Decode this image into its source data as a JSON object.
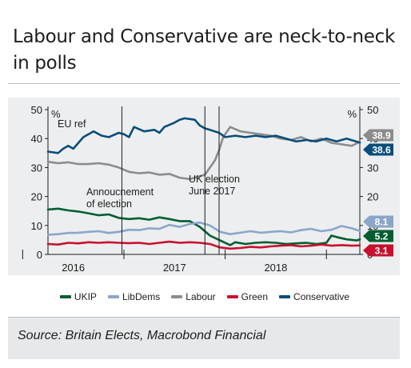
{
  "title": "Labour and Conservative are neck-to-neck in polls",
  "source": "Source: Britain Elects, Macrobond Financial",
  "chart_data": {
    "type": "line",
    "y_left_unit": "%",
    "y_right_unit": "%",
    "ylim": [
      0,
      50
    ],
    "yticks": [
      "0",
      "10",
      "20",
      "30",
      "40",
      "50"
    ],
    "xlim": [
      2015.75,
      2018.83
    ],
    "xticks": [
      {
        "value": 2016.0,
        "label": "2016"
      },
      {
        "value": 2017.0,
        "label": "2017"
      },
      {
        "value": 2018.0,
        "label": "2018"
      }
    ],
    "year_separators": [
      2016.0,
      2017.0,
      2018.0
    ],
    "vlines": [
      {
        "x": 2016.48,
        "label": "EU ref"
      },
      {
        "x": 2017.3,
        "label": "Annoucnement\nof election"
      },
      {
        "x": 2017.44,
        "label": "UK election\nJune 2017"
      }
    ],
    "grid": false,
    "legend_position": "bottom",
    "series": [
      {
        "name": "UKIP",
        "color": "#005e31",
        "end_value": "5.2",
        "points": [
          [
            2015.75,
            15.5
          ],
          [
            2015.85,
            15.8
          ],
          [
            2015.95,
            15.2
          ],
          [
            2016.05,
            14.8
          ],
          [
            2016.15,
            14.2
          ],
          [
            2016.25,
            13.5
          ],
          [
            2016.35,
            13.8
          ],
          [
            2016.45,
            12.6
          ],
          [
            2016.55,
            12.2
          ],
          [
            2016.65,
            12.5
          ],
          [
            2016.75,
            12.0
          ],
          [
            2016.85,
            12.8
          ],
          [
            2016.95,
            12.2
          ],
          [
            2017.05,
            11.5
          ],
          [
            2017.15,
            11.5
          ],
          [
            2017.25,
            9.5
          ],
          [
            2017.35,
            6.5
          ],
          [
            2017.45,
            4.8
          ],
          [
            2017.55,
            3.2
          ],
          [
            2017.6,
            4.2
          ],
          [
            2017.7,
            3.6
          ],
          [
            2017.8,
            4.0
          ],
          [
            2017.9,
            4.2
          ],
          [
            2018.0,
            4.0
          ],
          [
            2018.1,
            3.6
          ],
          [
            2018.2,
            3.8
          ],
          [
            2018.3,
            4.0
          ],
          [
            2018.4,
            3.6
          ],
          [
            2018.5,
            4.0
          ],
          [
            2018.55,
            6.5
          ],
          [
            2018.6,
            6.0
          ],
          [
            2018.7,
            5.2
          ],
          [
            2018.8,
            4.8
          ],
          [
            2018.83,
            5.2
          ]
        ]
      },
      {
        "name": "LibDems",
        "color": "#8ba6c8",
        "end_value": "8.1",
        "points": [
          [
            2015.75,
            6.8
          ],
          [
            2015.85,
            7.0
          ],
          [
            2015.95,
            7.4
          ],
          [
            2016.05,
            7.5
          ],
          [
            2016.15,
            7.8
          ],
          [
            2016.25,
            8.0
          ],
          [
            2016.35,
            7.4
          ],
          [
            2016.45,
            7.8
          ],
          [
            2016.55,
            8.5
          ],
          [
            2016.65,
            8.4
          ],
          [
            2016.75,
            9.0
          ],
          [
            2016.85,
            8.8
          ],
          [
            2016.95,
            10.2
          ],
          [
            2017.05,
            9.5
          ],
          [
            2017.15,
            10.5
          ],
          [
            2017.25,
            11.0
          ],
          [
            2017.35,
            10.0
          ],
          [
            2017.45,
            7.8
          ],
          [
            2017.55,
            7.0
          ],
          [
            2017.65,
            7.5
          ],
          [
            2017.75,
            8.0
          ],
          [
            2017.85,
            7.5
          ],
          [
            2017.95,
            7.8
          ],
          [
            2018.05,
            8.0
          ],
          [
            2018.15,
            7.6
          ],
          [
            2018.25,
            8.4
          ],
          [
            2018.35,
            8.8
          ],
          [
            2018.45,
            8.0
          ],
          [
            2018.55,
            8.5
          ],
          [
            2018.65,
            9.8
          ],
          [
            2018.75,
            9.0
          ],
          [
            2018.83,
            8.1
          ]
        ]
      },
      {
        "name": "Labour",
        "color": "#8c8c8c",
        "end_value": "38.9",
        "points": [
          [
            2015.75,
            32.0
          ],
          [
            2015.85,
            31.5
          ],
          [
            2015.95,
            31.8
          ],
          [
            2016.05,
            31.2
          ],
          [
            2016.15,
            31.2
          ],
          [
            2016.25,
            31.5
          ],
          [
            2016.35,
            31.0
          ],
          [
            2016.45,
            30.0
          ],
          [
            2016.55,
            28.5
          ],
          [
            2016.65,
            28.0
          ],
          [
            2016.75,
            28.3
          ],
          [
            2016.85,
            27.5
          ],
          [
            2016.95,
            27.8
          ],
          [
            2017.05,
            26.5
          ],
          [
            2017.15,
            26.0
          ],
          [
            2017.25,
            27.0
          ],
          [
            2017.3,
            27.5
          ],
          [
            2017.35,
            30.0
          ],
          [
            2017.4,
            32.5
          ],
          [
            2017.44,
            36.0
          ],
          [
            2017.48,
            40.5
          ],
          [
            2017.55,
            44.0
          ],
          [
            2017.65,
            42.5
          ],
          [
            2017.75,
            42.0
          ],
          [
            2017.85,
            41.5
          ],
          [
            2017.95,
            41.0
          ],
          [
            2018.05,
            40.0
          ],
          [
            2018.15,
            39.5
          ],
          [
            2018.25,
            40.5
          ],
          [
            2018.35,
            39.0
          ],
          [
            2018.45,
            40.0
          ],
          [
            2018.55,
            38.5
          ],
          [
            2018.65,
            38.0
          ],
          [
            2018.75,
            37.5
          ],
          [
            2018.83,
            38.9
          ]
        ]
      },
      {
        "name": "Green",
        "color": "#c8102e",
        "end_value": "3.1",
        "points": [
          [
            2015.75,
            3.6
          ],
          [
            2015.85,
            3.4
          ],
          [
            2015.95,
            4.0
          ],
          [
            2016.05,
            3.8
          ],
          [
            2016.15,
            4.2
          ],
          [
            2016.25,
            4.0
          ],
          [
            2016.35,
            4.2
          ],
          [
            2016.45,
            4.0
          ],
          [
            2016.55,
            3.9
          ],
          [
            2016.65,
            4.0
          ],
          [
            2016.75,
            3.6
          ],
          [
            2016.85,
            4.0
          ],
          [
            2016.95,
            4.4
          ],
          [
            2017.05,
            4.0
          ],
          [
            2017.15,
            4.2
          ],
          [
            2017.25,
            4.0
          ],
          [
            2017.35,
            3.6
          ],
          [
            2017.45,
            2.4
          ],
          [
            2017.55,
            2.0
          ],
          [
            2017.65,
            2.2
          ],
          [
            2017.75,
            2.6
          ],
          [
            2017.85,
            2.4
          ],
          [
            2017.95,
            2.8
          ],
          [
            2018.05,
            3.0
          ],
          [
            2018.15,
            3.2
          ],
          [
            2018.25,
            2.8
          ],
          [
            2018.35,
            3.0
          ],
          [
            2018.45,
            3.4
          ],
          [
            2018.55,
            3.0
          ],
          [
            2018.65,
            3.2
          ],
          [
            2018.75,
            3.0
          ],
          [
            2018.83,
            3.1
          ]
        ]
      },
      {
        "name": "Conservative",
        "color": "#0a4d7a",
        "end_value": "38.6",
        "points": [
          [
            2015.75,
            35.5
          ],
          [
            2015.85,
            35.0
          ],
          [
            2015.9,
            36.5
          ],
          [
            2015.95,
            37.5
          ],
          [
            2016.0,
            36.5
          ],
          [
            2016.1,
            40.5
          ],
          [
            2016.2,
            42.5
          ],
          [
            2016.28,
            41.0
          ],
          [
            2016.35,
            40.5
          ],
          [
            2016.45,
            42.0
          ],
          [
            2016.5,
            41.5
          ],
          [
            2016.55,
            40.5
          ],
          [
            2016.6,
            44.0
          ],
          [
            2016.7,
            42.5
          ],
          [
            2016.8,
            43.0
          ],
          [
            2016.85,
            42.0
          ],
          [
            2016.9,
            44.0
          ],
          [
            2017.0,
            45.5
          ],
          [
            2017.05,
            46.5
          ],
          [
            2017.1,
            47.0
          ],
          [
            2017.2,
            46.5
          ],
          [
            2017.25,
            44.5
          ],
          [
            2017.3,
            43.5
          ],
          [
            2017.35,
            43.0
          ],
          [
            2017.44,
            42.0
          ],
          [
            2017.5,
            40.5
          ],
          [
            2017.6,
            41.0
          ],
          [
            2017.7,
            40.5
          ],
          [
            2017.8,
            41.0
          ],
          [
            2017.9,
            40.5
          ],
          [
            2018.0,
            41.0
          ],
          [
            2018.1,
            40.0
          ],
          [
            2018.2,
            39.0
          ],
          [
            2018.3,
            39.5
          ],
          [
            2018.4,
            39.0
          ],
          [
            2018.5,
            40.0
          ],
          [
            2018.6,
            39.0
          ],
          [
            2018.7,
            40.0
          ],
          [
            2018.83,
            38.6
          ]
        ]
      }
    ]
  }
}
